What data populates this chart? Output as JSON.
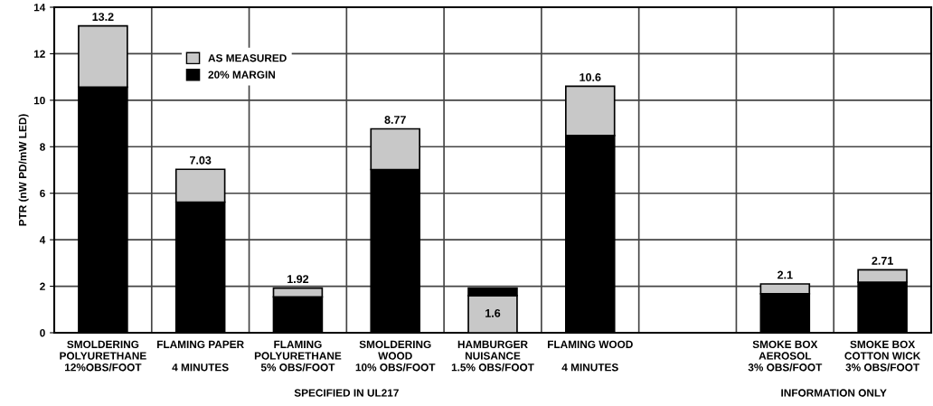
{
  "chart_data": {
    "type": "bar",
    "stacked": true,
    "ylabel": "PTR (nW PD/mW LED)",
    "categories": [
      "SMOLDERING\nPOLYURETHANE\n12%OBS/FOOT",
      "FLAMING PAPER\n\n4 MINUTES",
      "FLAMING\nPOLYURETHANE\n5% OBS/FOOT",
      "SMOLDERING\nWOOD\n10% OBS/FOOT",
      "HAMBURGER\nNUISANCE\n1.5% OBS/FOOT",
      "FLAMING WOOD\n\n4 MINUTES",
      null,
      "SMOKE BOX\nAEROSOL\n3% OBS/FOOT",
      "SMOKE BOX\nCOTTON WICK\n3% OBS/FOOT"
    ],
    "series": [
      {
        "name": "20% MARGIN",
        "color": "#000000",
        "values": [
          10.56,
          5.62,
          1.54,
          7.02,
          null,
          8.48,
          null,
          1.68,
          2.17
        ]
      },
      {
        "name": "AS MEASURED",
        "color": "#c8c8c8",
        "values": [
          2.64,
          1.41,
          0.38,
          1.75,
          1.6,
          2.12,
          null,
          0.42,
          0.54
        ],
        "value_labels": [
          null,
          null,
          null,
          null,
          "1.6",
          null,
          null,
          null,
          null
        ]
      },
      {
        "color": "#000000",
        "values": [
          null,
          null,
          null,
          null,
          0.32,
          null,
          null,
          null,
          null
        ]
      }
    ],
    "totals": [
      "13.2",
      "7.03",
      "1.92",
      "8.77",
      null,
      "10.6",
      null,
      "2.1",
      "2.71"
    ],
    "annotations": [
      "SPECIFIED IN UL217",
      "INFORMATION ONLY"
    ],
    "ylim": [
      0,
      14
    ],
    "yticks": [
      0,
      2,
      4,
      6,
      8,
      10,
      12,
      14
    ],
    "grid": true,
    "legend": "top left"
  }
}
